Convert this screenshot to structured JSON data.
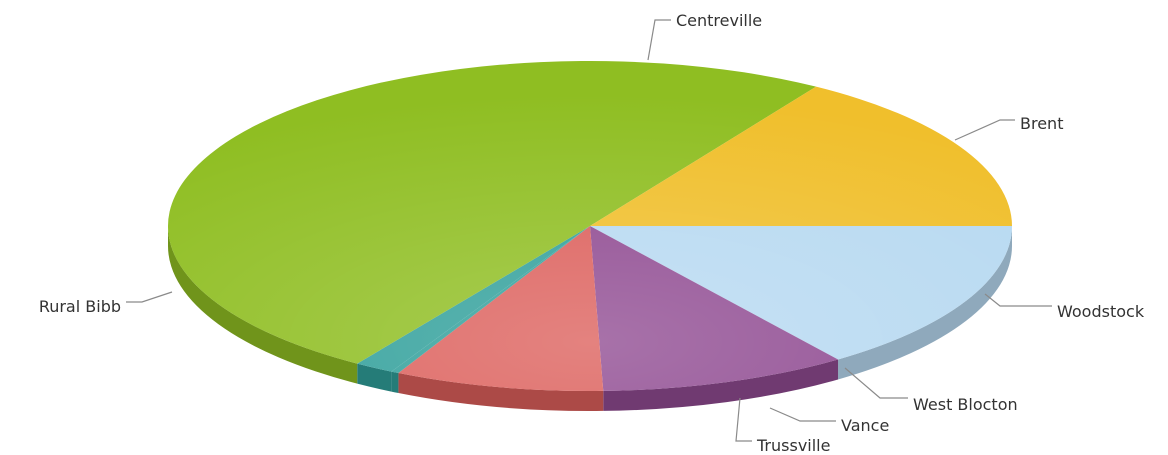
{
  "chart_data": {
    "type": "pie",
    "title": "",
    "slices": [
      {
        "label": "Brent",
        "value": 15.0,
        "color": "#b7d9f1"
      },
      {
        "label": "Woodstock",
        "value": 9.5,
        "color": "#8f4a91"
      },
      {
        "label": "West Blocton",
        "value": 8.0,
        "color": "#dc5f5b"
      },
      {
        "label": "Vance",
        "value": 0.3,
        "color": "#2f9f9a"
      },
      {
        "label": "Trussville",
        "value": 1.5,
        "color": "#2f9f9a"
      },
      {
        "label": "Rural Bibb",
        "value": 49.7,
        "color": "#8fbe22"
      },
      {
        "label": "Centreville",
        "value": 16.0,
        "color": "#f0bf2c"
      }
    ]
  }
}
